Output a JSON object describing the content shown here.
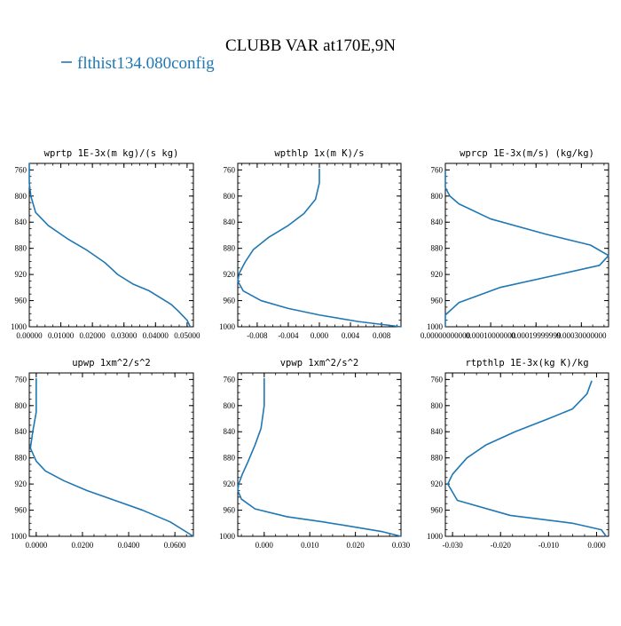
{
  "figure": {
    "title": "CLUBB VAR at170E,9N",
    "legend_label": "flthist134.080config",
    "line_color": "#1f77b4"
  },
  "chart_data": [
    {
      "type": "line",
      "title": "wprtp  1E-3x(m kg)/(s kg)",
      "xlim": [
        0,
        0.052
      ],
      "ylim": [
        1000,
        750
      ],
      "y_ticks": [
        760,
        800,
        840,
        880,
        920,
        960,
        1000
      ],
      "x_ticks": [
        0,
        0.01,
        0.02,
        0.03,
        0.04,
        0.05
      ],
      "x_tick_labels": [
        "0.00000",
        "0.01000",
        "0.02000",
        "0.03000",
        "0.04000",
        "0.05000"
      ],
      "series": [
        {
          "x": [
            0.0,
            0.0,
            0.0005,
            0.002,
            0.006,
            0.012,
            0.018,
            0.024,
            0.028,
            0.033,
            0.038,
            0.042,
            0.045,
            0.047,
            0.049,
            0.05,
            0.051
          ],
          "y": [
            750,
            780,
            800,
            825,
            845,
            865,
            882,
            902,
            920,
            935,
            945,
            957,
            966,
            975,
            985,
            990,
            1000
          ]
        }
      ]
    },
    {
      "type": "line",
      "title": "wpthlp  1x(m K)/s",
      "xlim": [
        -0.0105,
        0.0105
      ],
      "ylim": [
        1000,
        750
      ],
      "y_ticks": [
        760,
        800,
        840,
        880,
        920,
        960,
        1000
      ],
      "x_ticks": [
        -0.008,
        -0.004,
        0.0,
        0.004,
        0.008
      ],
      "x_tick_labels": [
        "-0.008",
        "-0.004",
        "0.000",
        "0.004",
        "0.008"
      ],
      "series": [
        {
          "x": [
            0.0,
            0.0,
            -0.0005,
            -0.002,
            -0.004,
            -0.0065,
            -0.0085,
            -0.0095,
            -0.0103,
            -0.0105,
            -0.0098,
            -0.0075,
            -0.004,
            0.0,
            0.005,
            0.0105
          ],
          "y": [
            758,
            780,
            805,
            827,
            845,
            863,
            882,
            900,
            918,
            930,
            945,
            960,
            972,
            982,
            992,
            1000
          ]
        }
      ]
    },
    {
      "type": "line",
      "title": "wprcp  1E-3x(m/s) (kg/kg)",
      "xlim": [
        0,
        0.00036
      ],
      "ylim": [
        1000,
        750
      ],
      "y_ticks": [
        760,
        800,
        840,
        880,
        920,
        960,
        1000
      ],
      "x_ticks": [
        0,
        0.0001,
        0.0002,
        0.0003
      ],
      "x_tick_labels": [
        "0.00000000000",
        "0.00010000000",
        "0.00019999999",
        "0.00030000000"
      ],
      "series": [
        {
          "x": [
            0.0,
            0.0,
            1e-05,
            3e-05,
            0.0001,
            0.00022,
            0.00032,
            0.00036,
            0.00034,
            0.00025,
            0.00012,
            3e-05,
            0.0,
            0.0
          ],
          "y": [
            760,
            787,
            800,
            812,
            835,
            858,
            875,
            891,
            906,
            920,
            940,
            963,
            982,
            1000
          ]
        }
      ]
    },
    {
      "type": "line",
      "title": "upwp  1xm^2/s^2",
      "xlim": [
        -0.003,
        0.068
      ],
      "ylim": [
        1000,
        750
      ],
      "y_ticks": [
        760,
        800,
        840,
        880,
        920,
        960,
        1000
      ],
      "x_ticks": [
        0,
        0.02,
        0.04,
        0.06
      ],
      "x_tick_labels": [
        "0.0000",
        "0.0200",
        "0.0400",
        "0.0600"
      ],
      "series": [
        {
          "x": [
            0.0,
            0.0,
            0.0,
            -0.0015,
            -0.0025,
            0.0,
            0.004,
            0.012,
            0.022,
            0.034,
            0.046,
            0.058,
            0.068
          ],
          "y": [
            758,
            790,
            810,
            840,
            865,
            885,
            900,
            915,
            930,
            945,
            960,
            978,
            1000
          ]
        }
      ]
    },
    {
      "type": "line",
      "title": "vpwp  1xm^2/s^2",
      "xlim": [
        -0.0058,
        0.03
      ],
      "ylim": [
        1000,
        750
      ],
      "y_ticks": [
        760,
        800,
        840,
        880,
        920,
        960,
        1000
      ],
      "x_ticks": [
        0,
        0.01,
        0.02,
        0.03
      ],
      "x_tick_labels": [
        "0.000",
        "0.010",
        "0.020",
        "0.030"
      ],
      "series": [
        {
          "x": [
            0.0,
            0.0,
            0.0,
            -0.0007,
            -0.002,
            -0.0035,
            -0.0048,
            -0.0056,
            -0.0058,
            -0.005,
            -0.002,
            0.005,
            0.013,
            0.02,
            0.026,
            0.03
          ],
          "y": [
            758,
            780,
            800,
            835,
            860,
            885,
            905,
            920,
            930,
            943,
            958,
            970,
            978,
            986,
            993,
            1000
          ]
        }
      ]
    },
    {
      "type": "line",
      "title": "rtpthlp  1E-3x(kg K)/kg",
      "xlim": [
        -0.0315,
        0.0025
      ],
      "ylim": [
        1000,
        750
      ],
      "y_ticks": [
        760,
        800,
        840,
        880,
        920,
        960,
        1000
      ],
      "x_ticks": [
        -0.03,
        -0.02,
        -0.01,
        0.0
      ],
      "x_tick_labels": [
        "-0.030",
        "-0.020",
        "-0.010",
        "0.000"
      ],
      "series": [
        {
          "x": [
            -0.001,
            -0.002,
            -0.005,
            -0.01,
            -0.017,
            -0.023,
            -0.027,
            -0.03,
            -0.031,
            -0.029,
            -0.018,
            -0.005,
            0.001,
            0.002
          ],
          "y": [
            762,
            782,
            805,
            820,
            840,
            860,
            880,
            905,
            920,
            945,
            968,
            980,
            990,
            1000
          ]
        }
      ]
    }
  ]
}
